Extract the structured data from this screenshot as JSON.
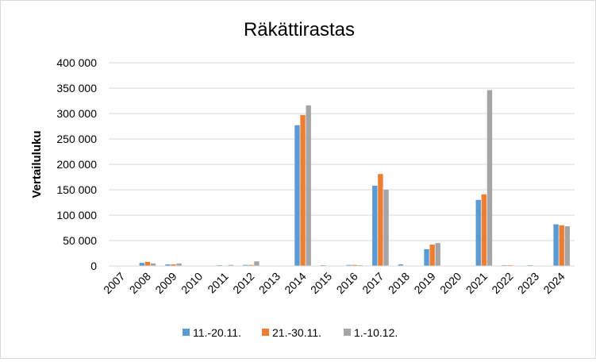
{
  "chart_data": {
    "type": "bar",
    "title": "Räkättirastas",
    "xlabel": "",
    "ylabel": "Vertailuluku",
    "ylim": [
      0,
      400000
    ],
    "yticks": [
      0,
      50000,
      100000,
      150000,
      200000,
      250000,
      300000,
      350000,
      400000
    ],
    "ytick_labels": [
      "0",
      "50 000",
      "100 000",
      "150 000",
      "200 000",
      "250 000",
      "300 000",
      "350 000",
      "400 000"
    ],
    "grid": true,
    "legend_position": "bottom",
    "categories": [
      "2007",
      "2008",
      "2009",
      "2010",
      "2011",
      "2012",
      "2013",
      "2014",
      "2015",
      "2016",
      "2017",
      "2018",
      "2019",
      "2020",
      "2021",
      "2022",
      "2023",
      "2024"
    ],
    "series": [
      {
        "name": "11.-20.11.",
        "color": "#5b9bd5",
        "values": [
          0,
          6000,
          3000,
          0,
          1500,
          2000,
          0,
          277000,
          1500,
          2000,
          158000,
          3000,
          33000,
          0,
          130000,
          1500,
          1500,
          82000
        ]
      },
      {
        "name": "21.-30.11.",
        "color": "#ed7d31",
        "values": [
          0,
          8000,
          3000,
          0,
          0,
          2000,
          0,
          297000,
          0,
          2000,
          181000,
          0,
          42000,
          0,
          141000,
          1500,
          0,
          80000
        ]
      },
      {
        "name": "1.-10.12.",
        "color": "#a5a5a5",
        "values": [
          0,
          5000,
          5000,
          0,
          2000,
          9000,
          0,
          316000,
          0,
          1500,
          150000,
          0,
          45000,
          0,
          346000,
          0,
          0,
          78000
        ]
      }
    ]
  }
}
